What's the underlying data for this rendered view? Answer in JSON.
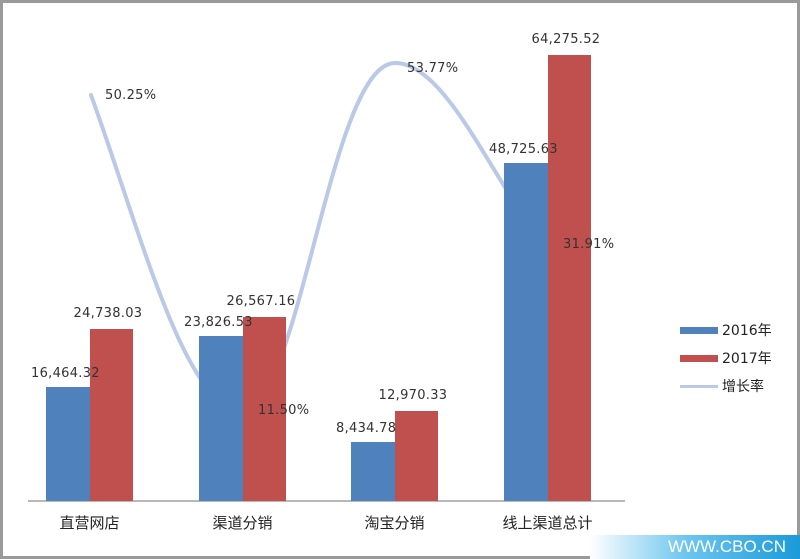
{
  "chart_data": {
    "type": "bar",
    "title": "",
    "xlabel": "",
    "ylabel": "",
    "categories": [
      "直营网店",
      "渠道分销",
      "淘宝分销",
      "线上渠道总计"
    ],
    "series": [
      {
        "name": "2016年",
        "type": "bar",
        "color": "#4f81bd",
        "values": [
          16464.32,
          23826.53,
          8434.78,
          48725.63
        ]
      },
      {
        "name": "2017年",
        "type": "bar",
        "color": "#c0504d",
        "values": [
          24738.03,
          26567.16,
          12970.33,
          64275.52
        ]
      },
      {
        "name": "增长率",
        "type": "line",
        "color": "#b9c9e6",
        "values": [
          50.25,
          11.5,
          53.77,
          31.91
        ],
        "unit": "%"
      }
    ],
    "data_labels": {
      "2016年": [
        "16,464.32",
        "23,826.53",
        "8,434.78",
        "48,725.63"
      ],
      "2017年": [
        "24,738.03",
        "26,567.16",
        "12,970.33",
        "64,275.52"
      ],
      "增长率": [
        "50.25%",
        "11.50%",
        "53.77%",
        "31.91%"
      ]
    },
    "legend_position": "right",
    "grid": false
  },
  "legend": {
    "items": [
      {
        "label": "2016年",
        "color": "#4f81bd"
      },
      {
        "label": "2017年",
        "color": "#c0504d"
      },
      {
        "label": "增长率",
        "color": "#b9c9e6"
      }
    ]
  },
  "watermark": "WWW.CBO.CN"
}
